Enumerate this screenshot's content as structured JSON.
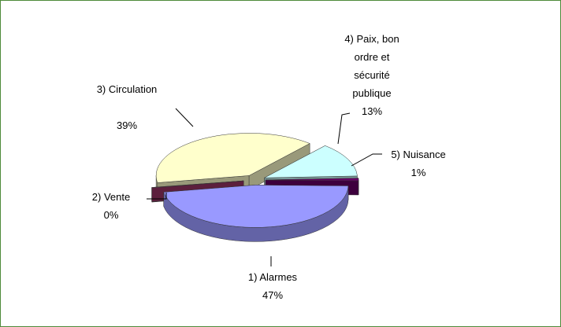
{
  "chart_data": {
    "type": "pie",
    "categories": [
      "1) Alarmes",
      "2) Vente",
      "3) Circulation",
      "4) Paix, bon ordre et sécurité publique",
      "5) Nuisance"
    ],
    "values": [
      47,
      0,
      39,
      13,
      1
    ],
    "value_labels": [
      "47%",
      "0%",
      "39%",
      "13%",
      "1%"
    ],
    "colors": [
      "#9999ff",
      "#993366",
      "#ffffcc",
      "#ccffff",
      "#660066"
    ],
    "three_d": true,
    "exploded": true
  }
}
